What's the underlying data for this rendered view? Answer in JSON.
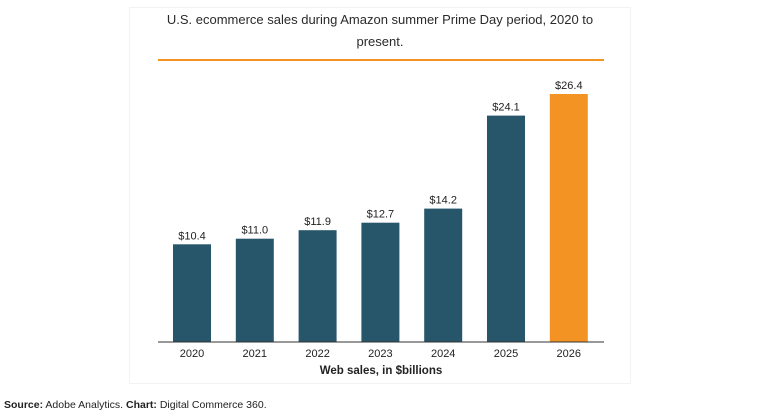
{
  "chart_data": {
    "type": "bar",
    "title_line1": "U.S. ecommerce sales during Amazon summer Prime Day period, 2020 to",
    "title_line2": "present.",
    "categories": [
      "2020",
      "2021",
      "2022",
      "2023",
      "2024",
      "2025",
      "2026"
    ],
    "values": [
      10.4,
      11.0,
      11.9,
      12.7,
      14.2,
      24.1,
      26.4
    ],
    "value_labels": [
      "$10.4",
      "$11.0",
      "$11.9",
      "$12.7",
      "$14.2",
      "$24.1",
      "$26.4"
    ],
    "xlabel": "Web sales, in $billions",
    "ylim": [
      0,
      26.4
    ],
    "grid": false,
    "legend": "none",
    "colors": {
      "bar": "#27566b",
      "highlight": "#f39323",
      "title_rule": "#f39323",
      "axis": "#333333"
    },
    "highlight_category": "2026"
  },
  "footer": {
    "source_label": "Source:",
    "source_text": " Adobe Analytics. ",
    "chart_label": "Chart:",
    "chart_text": " Digital Commerce 360."
  }
}
